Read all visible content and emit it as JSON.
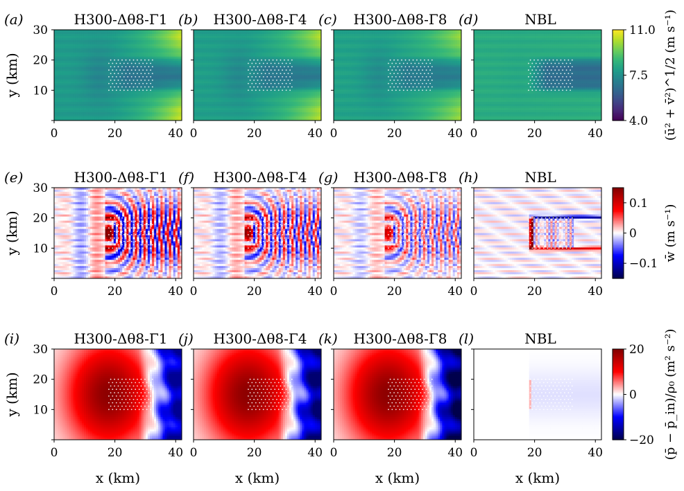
{
  "chart_data": {
    "type": "heatmap",
    "xlabel": "x (km)",
    "ylabel": "y (km)",
    "xlim": [
      0,
      42
    ],
    "ylim": [
      0,
      30
    ],
    "xticks": [
      0,
      20,
      40
    ],
    "yticks": [
      10,
      20,
      30
    ],
    "wind_farm_region": {
      "x": [
        18,
        33
      ],
      "y": [
        10,
        20
      ]
    },
    "rows": [
      {
        "quantity": "horizontal wind speed",
        "colorbar_label": "(ū² + v̄²)^1/2 (m s⁻¹)",
        "colormap": "viridis",
        "clim": [
          4.0,
          11.0
        ],
        "colorbar_ticks": [
          "11.0",
          "7.5",
          "4.0"
        ],
        "colorbar_tick_values": [
          11.0,
          7.5,
          4.0
        ],
        "panels": [
          {
            "tag": "(a)",
            "case": "H300-Δθ8-Γ1",
            "upstream_value": 7.8,
            "wake_value": 6.7,
            "downstream_side_value": 10.4
          },
          {
            "tag": "(b)",
            "case": "H300-Δθ8-Γ4",
            "upstream_value": 7.9,
            "wake_value": 6.8,
            "downstream_side_value": 10.2
          },
          {
            "tag": "(c)",
            "case": "H300-Δθ8-Γ8",
            "upstream_value": 8.0,
            "wake_value": 6.9,
            "downstream_side_value": 9.9
          },
          {
            "tag": "(d)",
            "case": "NBL",
            "upstream_value": 8.3,
            "wake_value": 6.5,
            "downstream_side_value": 8.4
          }
        ]
      },
      {
        "quantity": "vertical velocity",
        "colorbar_label": "w̄ (m s⁻¹)",
        "colormap": "seismic",
        "clim": [
          -0.15,
          0.15
        ],
        "colorbar_ticks": [
          "0.1",
          "0",
          "−0.1"
        ],
        "colorbar_tick_values": [
          0.1,
          0,
          -0.1
        ],
        "panels": [
          {
            "tag": "(e)",
            "case": "H300-Δθ8-Γ1",
            "wave_amplitude": 0.1
          },
          {
            "tag": "(f)",
            "case": "H300-Δθ8-Γ4",
            "wave_amplitude": 0.08
          },
          {
            "tag": "(g)",
            "case": "H300-Δθ8-Γ8",
            "wave_amplitude": 0.06
          },
          {
            "tag": "(h)",
            "case": "NBL",
            "wave_amplitude": 0.0
          }
        ]
      },
      {
        "quantity": "pressure perturbation",
        "colorbar_label": "(p̄ − p̄_in)/ρ₀ (m² s⁻²)",
        "colormap": "seismic",
        "clim": [
          -20,
          20
        ],
        "colorbar_ticks": [
          "20",
          "0",
          "−20"
        ],
        "colorbar_tick_values": [
          20,
          0,
          -20
        ],
        "panels": [
          {
            "tag": "(i)",
            "case": "H300-Δθ8-Γ1",
            "max_value": 20,
            "min_value": -16
          },
          {
            "tag": "(j)",
            "case": "H300-Δθ8-Γ4",
            "max_value": 20,
            "min_value": -18
          },
          {
            "tag": "(k)",
            "case": "H300-Δθ8-Γ8",
            "max_value": 20,
            "min_value": -20
          },
          {
            "tag": "(l)",
            "case": "NBL",
            "max_value": 2,
            "min_value": -2
          }
        ]
      }
    ]
  }
}
